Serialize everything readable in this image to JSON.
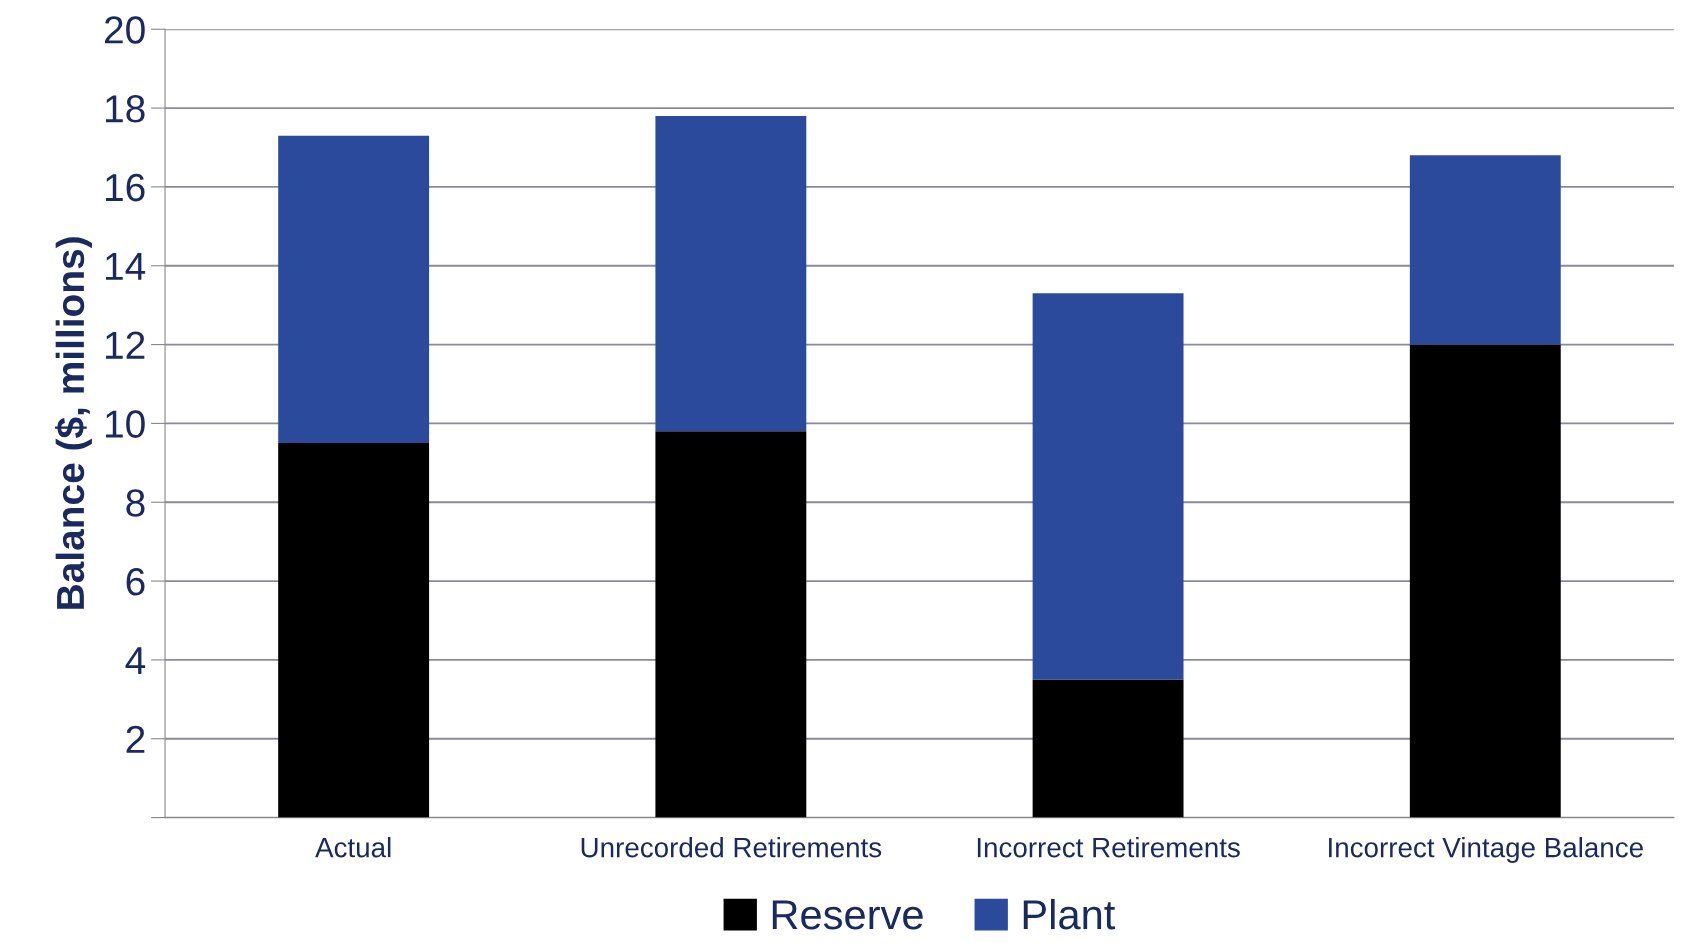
{
  "chart_data": {
    "type": "bar",
    "stacked": true,
    "ylabel": "Balance ($, millions)",
    "categories": [
      "Actual",
      "Unrecorded Retirements",
      "Incorrect Retirements",
      "Incorrect Vintage Balance"
    ],
    "series": [
      {
        "name": "Reserve",
        "color": "#000000",
        "values": [
          9.5,
          9.8,
          3.5,
          12.0
        ]
      },
      {
        "name": "Plant",
        "color": "#2c4a9c",
        "values": [
          7.8,
          8.0,
          9.8,
          4.8
        ]
      }
    ],
    "ylim": [
      0,
      20
    ],
    "yticks": [
      {
        "value": 0,
        "label": null
      },
      2,
      4,
      6,
      8,
      10,
      12,
      14,
      16,
      18,
      20
    ],
    "grid": "y",
    "legend": "bottom"
  }
}
